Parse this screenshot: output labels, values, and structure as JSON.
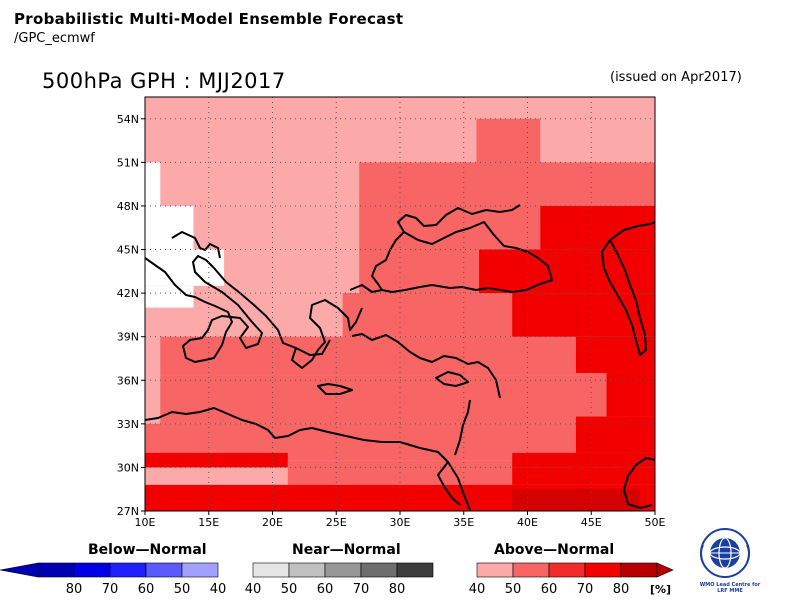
{
  "header": {
    "title": "Probabilistic Multi-Model Ensemble Forecast",
    "subtitle": "/GPC_ecmwf",
    "map_title": "500hPa GPH : MJJ2017",
    "issued": "(issued on Apr2017)"
  },
  "map": {
    "lon_ticks": [
      "10E",
      "15E",
      "20E",
      "25E",
      "30E",
      "35E",
      "40E",
      "45E",
      "50E"
    ],
    "lat_ticks": [
      "27N",
      "30N",
      "33N",
      "36N",
      "39N",
      "42N",
      "45N",
      "48N",
      "51N",
      "54N"
    ],
    "lon_range": [
      10,
      50
    ],
    "lat_range": [
      27,
      55.5
    ],
    "grid_lines": "dotted",
    "category_colors": {
      "0": "#ffffff",
      "1": "#fca9a9",
      "2": "#f76565",
      "3": "#f22b2b",
      "4": "#f20000",
      "5": "#d50000"
    },
    "cells": [
      {
        "lon": [
          10,
          50
        ],
        "lat": [
          27,
          55.5
        ],
        "cat": 1
      },
      {
        "lon": [
          10,
          11.2
        ],
        "lat": [
          48,
          51
        ],
        "cat": 0
      },
      {
        "lon": [
          10,
          13.8
        ],
        "lat": [
          45,
          48
        ],
        "cat": 0
      },
      {
        "lon": [
          10,
          16.2
        ],
        "lat": [
          42.5,
          45
        ],
        "cat": 0
      },
      {
        "lon": [
          10,
          13.8
        ],
        "lat": [
          41,
          42.5
        ],
        "cat": 0
      },
      {
        "lon": [
          36,
          41
        ],
        "lat": [
          51,
          54
        ],
        "cat": 2
      },
      {
        "lon": [
          26.8,
          50
        ],
        "lat": [
          48,
          51
        ],
        "cat": 2
      },
      {
        "lon": [
          26.8,
          41
        ],
        "lat": [
          45,
          48
        ],
        "cat": 2
      },
      {
        "lon": [
          26.8,
          36.2
        ],
        "lat": [
          42,
          45
        ],
        "cat": 2
      },
      {
        "lon": [
          25.5,
          50
        ],
        "lat": [
          39,
          42
        ],
        "cat": 2
      },
      {
        "lon": [
          11.2,
          50
        ],
        "lat": [
          36.3,
          39
        ],
        "cat": 2
      },
      {
        "lon": [
          11.2,
          50
        ],
        "lat": [
          33,
          36.3
        ],
        "cat": 2
      },
      {
        "lon": [
          10,
          50
        ],
        "lat": [
          30.5,
          33
        ],
        "cat": 2
      },
      {
        "lon": [
          21.2,
          50
        ],
        "lat": [
          28.8,
          30.5
        ],
        "cat": 2
      },
      {
        "lon": [
          41,
          50
        ],
        "lat": [
          45,
          48
        ],
        "cat": 4
      },
      {
        "lon": [
          36.2,
          50
        ],
        "lat": [
          42,
          45
        ],
        "cat": 4
      },
      {
        "lon": [
          38.8,
          50
        ],
        "lat": [
          39,
          42
        ],
        "cat": 4
      },
      {
        "lon": [
          43.8,
          50
        ],
        "lat": [
          36.5,
          39
        ],
        "cat": 4
      },
      {
        "lon": [
          46.2,
          50
        ],
        "lat": [
          33.5,
          36.5
        ],
        "cat": 4
      },
      {
        "lon": [
          43.8,
          50
        ],
        "lat": [
          31,
          33.5
        ],
        "cat": 4
      },
      {
        "lon": [
          10,
          21.2
        ],
        "lat": [
          30,
          31
        ],
        "cat": 4
      },
      {
        "lon": [
          38.8,
          50
        ],
        "lat": [
          30,
          31
        ],
        "cat": 4
      },
      {
        "lon": [
          10,
          50
        ],
        "lat": [
          27,
          28.8
        ],
        "cat": 4
      },
      {
        "lon": [
          38.8,
          50
        ],
        "lat": [
          28.8,
          30
        ],
        "cat": 4
      },
      {
        "lon": [
          38.8,
          48.8
        ],
        "lat": [
          27,
          28.5
        ],
        "cat": 5
      }
    ]
  },
  "legend": {
    "below": {
      "title": "Below—Normal",
      "labels": [
        "80",
        "70",
        "60",
        "50",
        "40"
      ],
      "colors": [
        "#0000b3",
        "#0000e6",
        "#1e1eff",
        "#5a5aff",
        "#a0a0ff"
      ]
    },
    "near": {
      "title": "Near—Normal",
      "labels": [
        "40",
        "50",
        "60",
        "70",
        "80"
      ],
      "colors": [
        "#e6e6e6",
        "#c0c0c0",
        "#979797",
        "#6e6e6e",
        "#3c3c3c"
      ]
    },
    "above": {
      "title": "Above—Normal",
      "labels": [
        "40",
        "50",
        "60",
        "70",
        "80"
      ],
      "colors": [
        "#fca9a9",
        "#f76565",
        "#f22b2b",
        "#f20000",
        "#b80000"
      ]
    },
    "unit": "[%]"
  },
  "logo": {
    "icon": "wmo-globe-icon",
    "caption": [
      "WMO Lead Centre for",
      "LRF MME"
    ]
  }
}
